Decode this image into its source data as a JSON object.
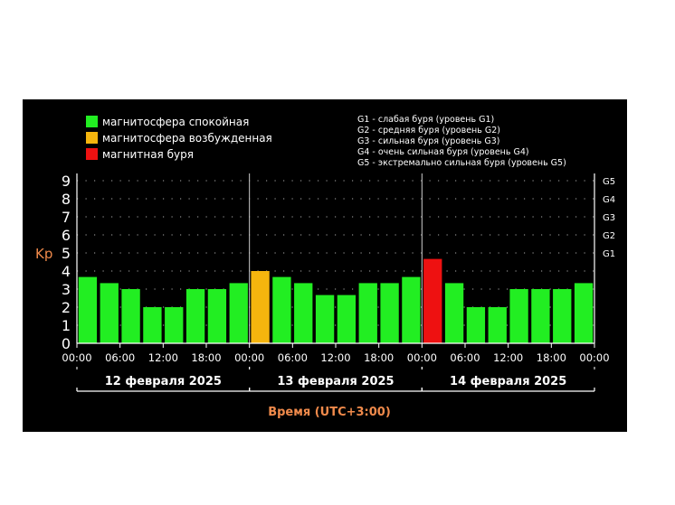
{
  "chart_data": {
    "type": "bar",
    "ylabel": "Kp",
    "xlabel": "Время (UTC+3:00)",
    "ylim": [
      0,
      9
    ],
    "y_ticks": [
      "0",
      "1",
      "2",
      "3",
      "4",
      "5",
      "6",
      "7",
      "8",
      "9"
    ],
    "g_levels": [
      {
        "label": "G1",
        "kp": 5
      },
      {
        "label": "G2",
        "kp": 6
      },
      {
        "label": "G3",
        "kp": 7
      },
      {
        "label": "G4",
        "kp": 8
      },
      {
        "label": "G5",
        "kp": 9
      }
    ],
    "x_tick_labels": [
      "00:00",
      "06:00",
      "12:00",
      "18:00",
      "00:00",
      "06:00",
      "12:00",
      "18:00",
      "00:00",
      "06:00",
      "12:00",
      "18:00",
      "00:00"
    ],
    "days": [
      "12 февраля 2025",
      "13 февраля 2025",
      "14 февраля 2025"
    ],
    "values": [
      3.67,
      3.33,
      3.0,
      2.0,
      2.0,
      3.0,
      3.0,
      3.33,
      4.0,
      3.67,
      3.33,
      2.67,
      2.67,
      3.33,
      3.33,
      3.67,
      4.67,
      3.33,
      2.0,
      2.0,
      3.0,
      3.0,
      3.0,
      3.33
    ],
    "status": [
      "quiet",
      "quiet",
      "quiet",
      "quiet",
      "quiet",
      "quiet",
      "quiet",
      "quiet",
      "active",
      "quiet",
      "quiet",
      "quiet",
      "quiet",
      "quiet",
      "quiet",
      "quiet",
      "storm",
      "quiet",
      "quiet",
      "quiet",
      "quiet",
      "quiet",
      "quiet",
      "quiet"
    ],
    "legend": [
      {
        "key": "quiet",
        "label": "магнитосфера спокойная",
        "color": "#22ee22"
      },
      {
        "key": "active",
        "label": "магнитосфера возбужденная",
        "color": "#f5b50e"
      },
      {
        "key": "storm",
        "label": "магнитная буря",
        "color": "#ee1111"
      }
    ],
    "g_legend": [
      "G1 - слабая буря (уровень G1)",
      "G2 - средняя буря (уровень G2)",
      "G3 - сильная буря (уровень G3)",
      "G4 - очень сильная буря (уровень G4)",
      "G5 - экстремально сильная буря (уровень G5)"
    ],
    "colors": {
      "background": "#000000",
      "axis": "#ffffff",
      "ylabel": "#f08a4b",
      "xlabel": "#f08a4b",
      "grid": "#888888"
    },
    "grid": true
  }
}
